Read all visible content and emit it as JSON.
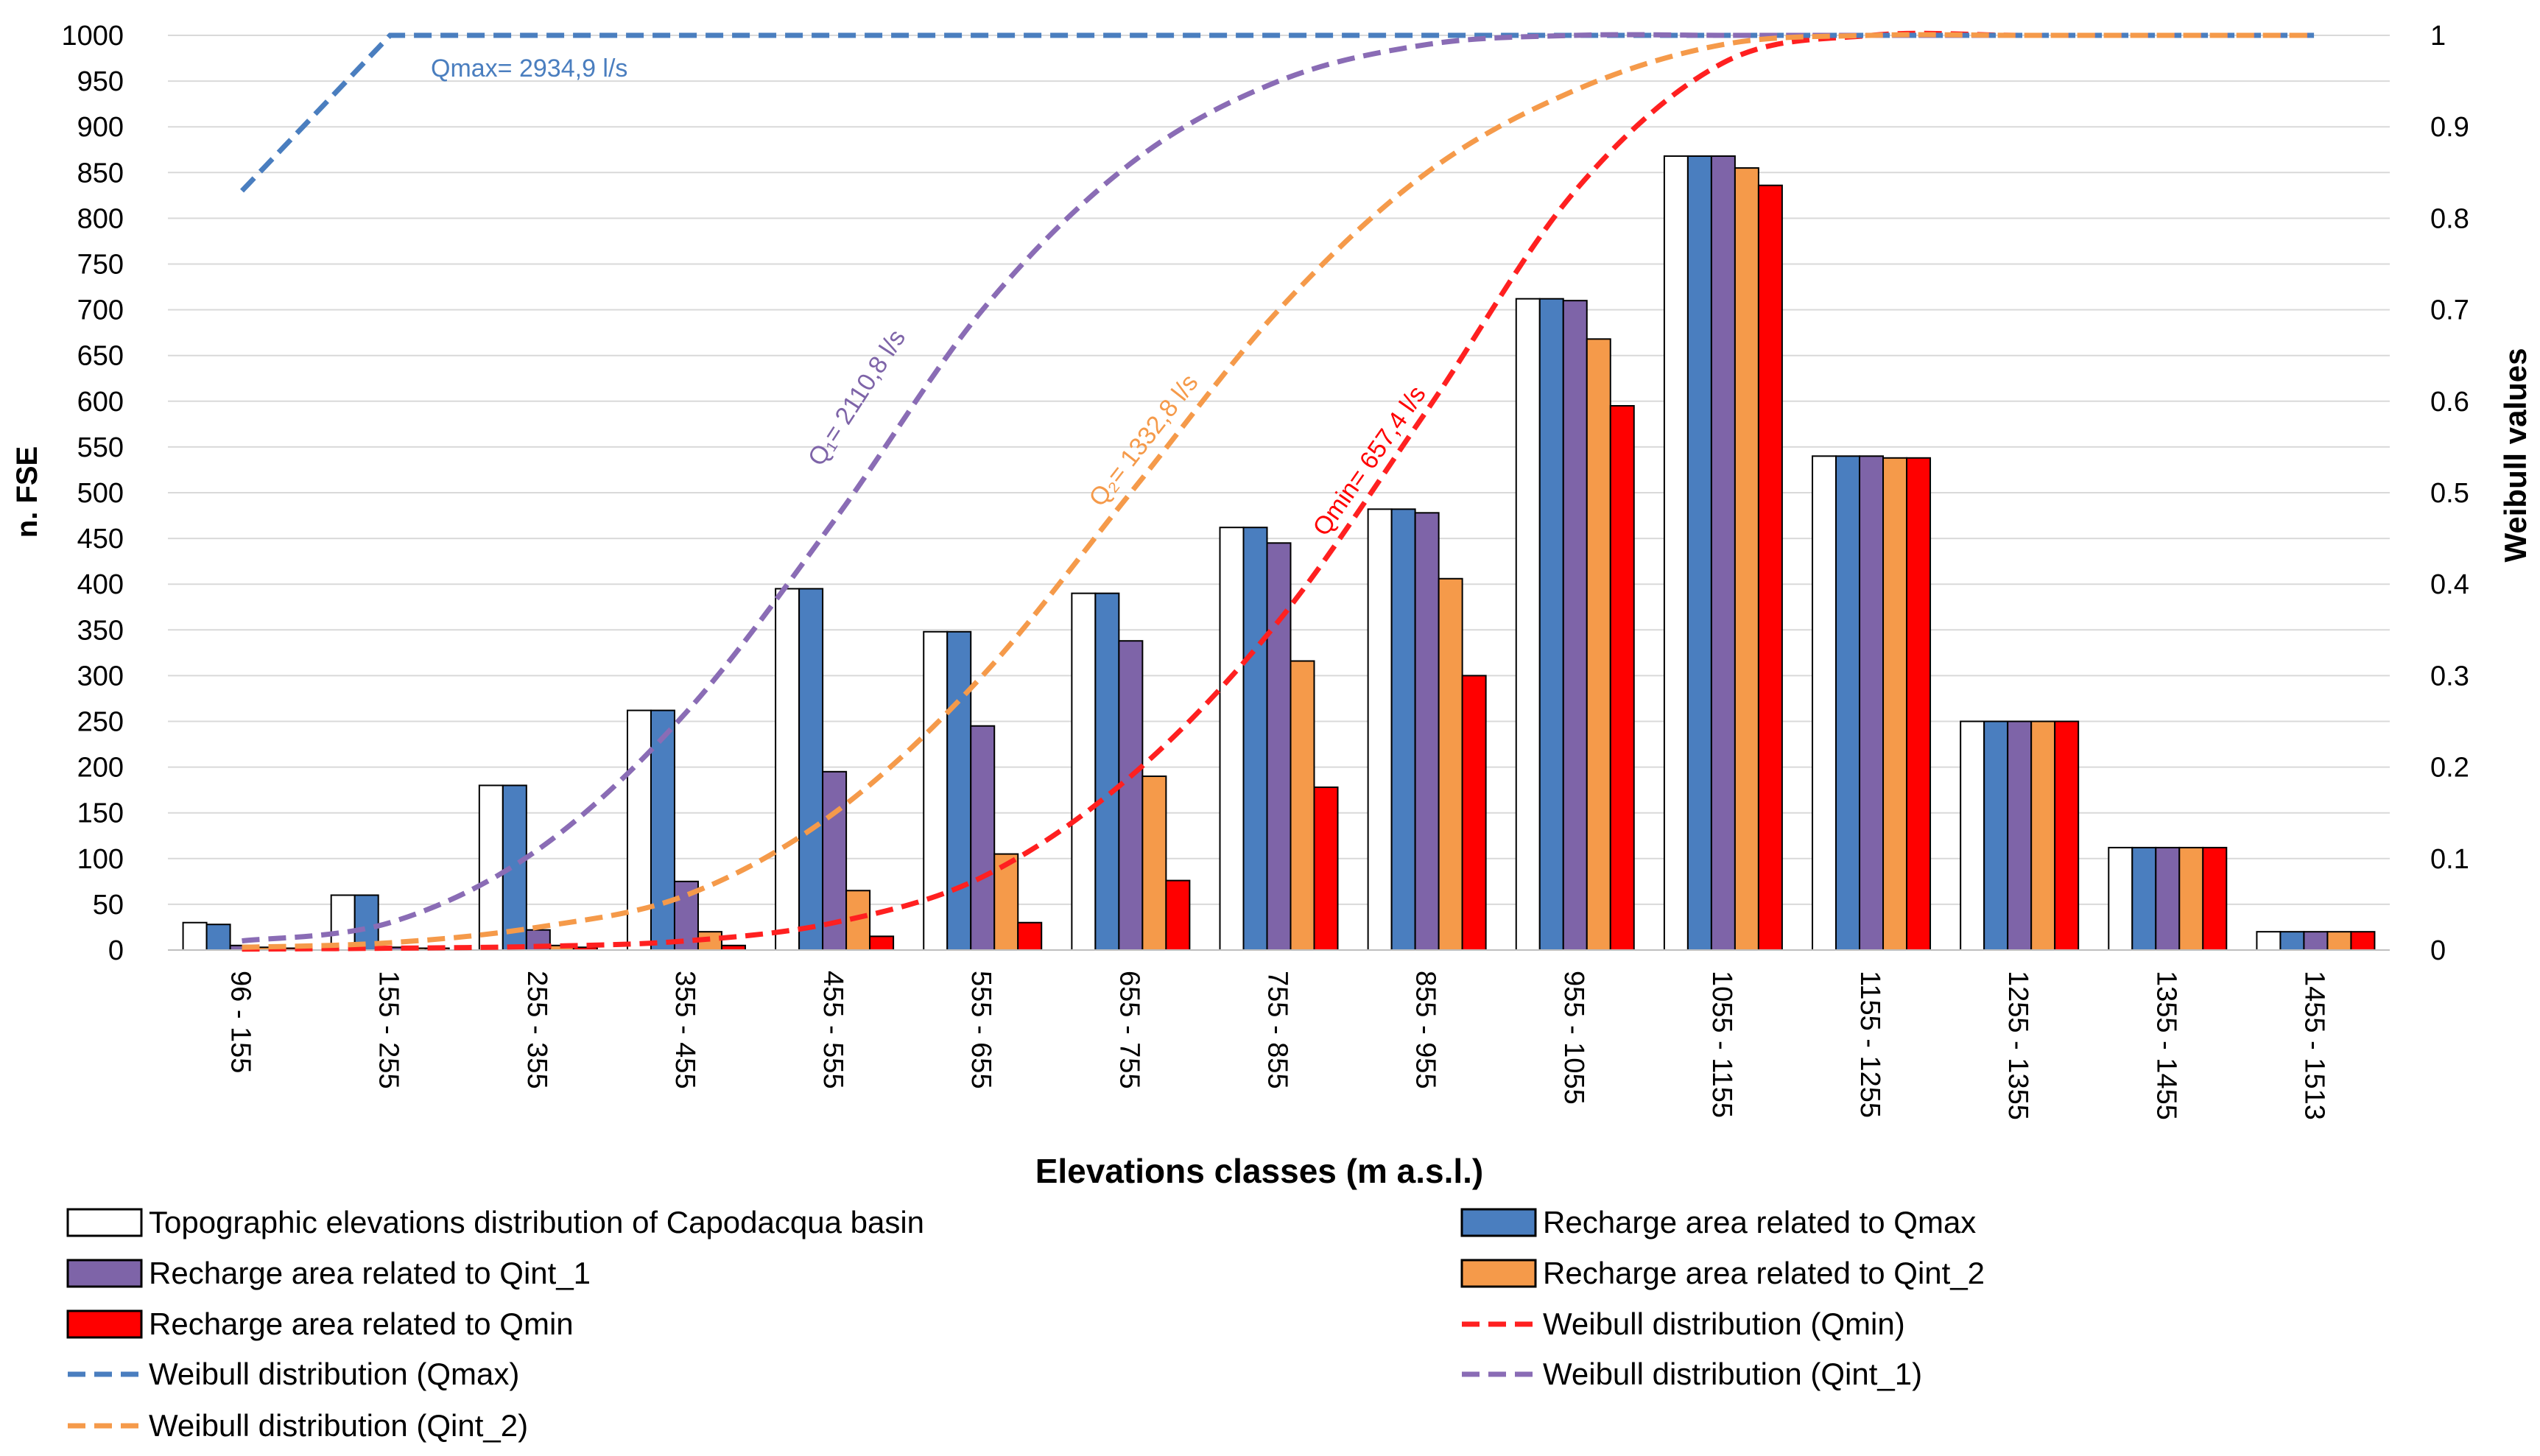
{
  "chart_data": {
    "type": "bar",
    "title": "",
    "xlabel": "Elevations classes (m a.s.l.)",
    "ylabel": "n. FSE",
    "y2label": "Weibull values",
    "ylim": [
      0,
      1000
    ],
    "y2lim": [
      0,
      1
    ],
    "yticks": [
      "0",
      "50",
      "100",
      "150",
      "200",
      "250",
      "300",
      "350",
      "400",
      "450",
      "500",
      "550",
      "600",
      "650",
      "700",
      "750",
      "800",
      "850",
      "900",
      "950",
      "1000"
    ],
    "y2ticks": [
      "0",
      "0.1",
      "0.2",
      "0.3",
      "0.4",
      "0.5",
      "0.6",
      "0.7",
      "0.8",
      "0.9",
      "1"
    ],
    "categories": [
      "96 - 155",
      "155 - 255",
      "255 - 355",
      "355 - 455",
      "455 - 555",
      "555 - 655",
      "655 - 755",
      "755 - 855",
      "855 - 955",
      "955 - 1055",
      "1055 - 1155",
      "1155 - 1255",
      "1255 - 1355",
      "1355 - 1455",
      "1455 - 1513"
    ],
    "series": [
      {
        "name": "Topographic elevations distribution of Capodacqua basin",
        "color": "#ffffff",
        "values": [
          30,
          60,
          180,
          262,
          395,
          348,
          390,
          462,
          482,
          712,
          868,
          540,
          250,
          112,
          20
        ]
      },
      {
        "name": "Recharge area related to Qmax",
        "color": "#4a7ebf",
        "values": [
          28,
          60,
          180,
          262,
          395,
          348,
          390,
          462,
          482,
          712,
          868,
          540,
          250,
          112,
          20
        ]
      },
      {
        "name": "Recharge area related to Qint_1",
        "color": "#7e64a8",
        "values": [
          5,
          3,
          22,
          75,
          195,
          245,
          338,
          445,
          478,
          710,
          868,
          540,
          250,
          112,
          20
        ]
      },
      {
        "name": "Recharge area related to Qint_2",
        "color": "#f59a4a",
        "values": [
          3,
          2,
          5,
          20,
          65,
          105,
          190,
          316,
          406,
          668,
          855,
          538,
          250,
          112,
          20
        ]
      },
      {
        "name": "Recharge area related to Qmin",
        "color": "#ff0000",
        "values": [
          2,
          2,
          3,
          5,
          15,
          30,
          76,
          178,
          300,
          595,
          836,
          538,
          250,
          112,
          20
        ]
      }
    ],
    "lines": [
      {
        "name": "Weibull distribution (Qmin)",
        "color": "#ff2020",
        "axis": "right",
        "values": [
          0.001,
          0.002,
          0.004,
          0.01,
          0.03,
          0.08,
          0.19,
          0.36,
          0.59,
          0.83,
          0.97,
          1.0,
          1.0,
          1.0,
          1.0
        ]
      },
      {
        "name": "Weibull distribution (Qmax)",
        "color": "#4a7ebf",
        "axis": "right",
        "values": [
          0.83,
          1.0,
          1.0,
          1.0,
          1.0,
          1.0,
          1.0,
          1.0,
          1.0,
          1.0,
          1.0,
          1.0,
          1.0,
          1.0,
          1.0
        ]
      },
      {
        "name": "Weibull  distribution (Qint_1)",
        "color": "#8a6cb5",
        "axis": "right",
        "values": [
          0.01,
          0.03,
          0.11,
          0.26,
          0.47,
          0.7,
          0.86,
          0.95,
          0.99,
          1.0,
          1.0,
          1.0,
          1.0,
          1.0,
          1.0
        ]
      },
      {
        "name": "Weibull distribution (Qint_2)",
        "color": "#f59a4a",
        "axis": "right",
        "values": [
          0.003,
          0.008,
          0.025,
          0.06,
          0.15,
          0.3,
          0.5,
          0.7,
          0.85,
          0.94,
          0.99,
          1.0,
          1.0,
          1.0,
          1.0
        ]
      }
    ],
    "annotations": [
      {
        "text": "Qmax= 2934,9 l/s",
        "color": "#4a7ebf"
      },
      {
        "text": "Q₁= 2110,8 l/s",
        "color": "#7e64a8"
      },
      {
        "text": "Q₂= 1332,8 l/s",
        "color": "#f59a4a"
      },
      {
        "text": "Qmin= 657,4 l/s",
        "color": "#ff0000"
      }
    ],
    "legend": {
      "placement": "bottom",
      "items": [
        {
          "label": "Topographic elevations distribution of Capodacqua basin",
          "kind": "box",
          "color": "#ffffff"
        },
        {
          "label": "Recharge area related to Qmax",
          "kind": "box",
          "color": "#4a7ebf"
        },
        {
          "label": "Recharge area related to Qint_1",
          "kind": "box",
          "color": "#7e64a8"
        },
        {
          "label": "Recharge area related to Qint_2",
          "kind": "box",
          "color": "#f59a4a"
        },
        {
          "label": "Recharge area related to Qmin",
          "kind": "box",
          "color": "#ff0000"
        },
        {
          "label": "Weibull distribution (Qmin)",
          "kind": "line",
          "color": "#ff2020"
        },
        {
          "label": "Weibull distribution (Qmax)",
          "kind": "line",
          "color": "#4a7ebf"
        },
        {
          "label": "Weibull  distribution (Qint_1)",
          "kind": "line",
          "color": "#8a6cb5"
        },
        {
          "label": "Weibull distribution (Qint_2)",
          "kind": "line",
          "color": "#f59a4a"
        }
      ]
    }
  }
}
